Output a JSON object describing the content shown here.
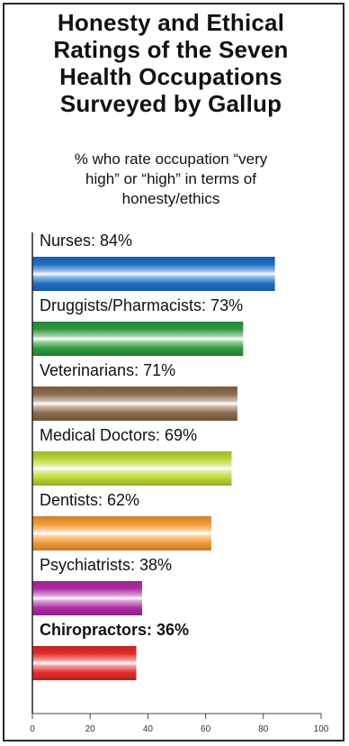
{
  "chart_data": {
    "type": "bar",
    "orientation": "horizontal",
    "title": "Honesty and Ethical Ratings of the Seven Health Occupations Surveyed by Gallup",
    "title_lines": [
      "Honesty and Ethical",
      "Ratings of the Seven",
      "Health Occupations",
      "Surveyed by Gallup"
    ],
    "subtitle": "% who rate occupation “very high” or “high” in terms of honesty/ethics",
    "subtitle_lines": [
      "% who rate occupation “very",
      "high” or “high” in terms of",
      "honesty/ethics"
    ],
    "categories": [
      "Nurses",
      "Druggists/Pharmacists",
      "Veterinarians",
      "Medical Doctors",
      "Dentists",
      "Psychiatrists",
      "Chiropractors"
    ],
    "labels": [
      "Nurses: 84%",
      "Druggists/Pharmacists: 73%",
      "Veterinarians: 71%",
      "Medical Doctors: 69%",
      "Dentists: 62%",
      "Psychiatrists: 38%",
      "Chiropractors: 36%"
    ],
    "values": [
      84,
      73,
      71,
      69,
      62,
      38,
      36
    ],
    "colors": [
      "#1f6fc4",
      "#2e9a3e",
      "#8b6a4a",
      "#b9d836",
      "#f29a36",
      "#b02ba6",
      "#e32b2b"
    ],
    "bold_labels": [
      false,
      false,
      false,
      false,
      false,
      false,
      true
    ],
    "xlim": [
      0,
      100
    ],
    "xticks": [
      0,
      20,
      40,
      60,
      80,
      100
    ],
    "xlabel": "",
    "ylabel": ""
  }
}
